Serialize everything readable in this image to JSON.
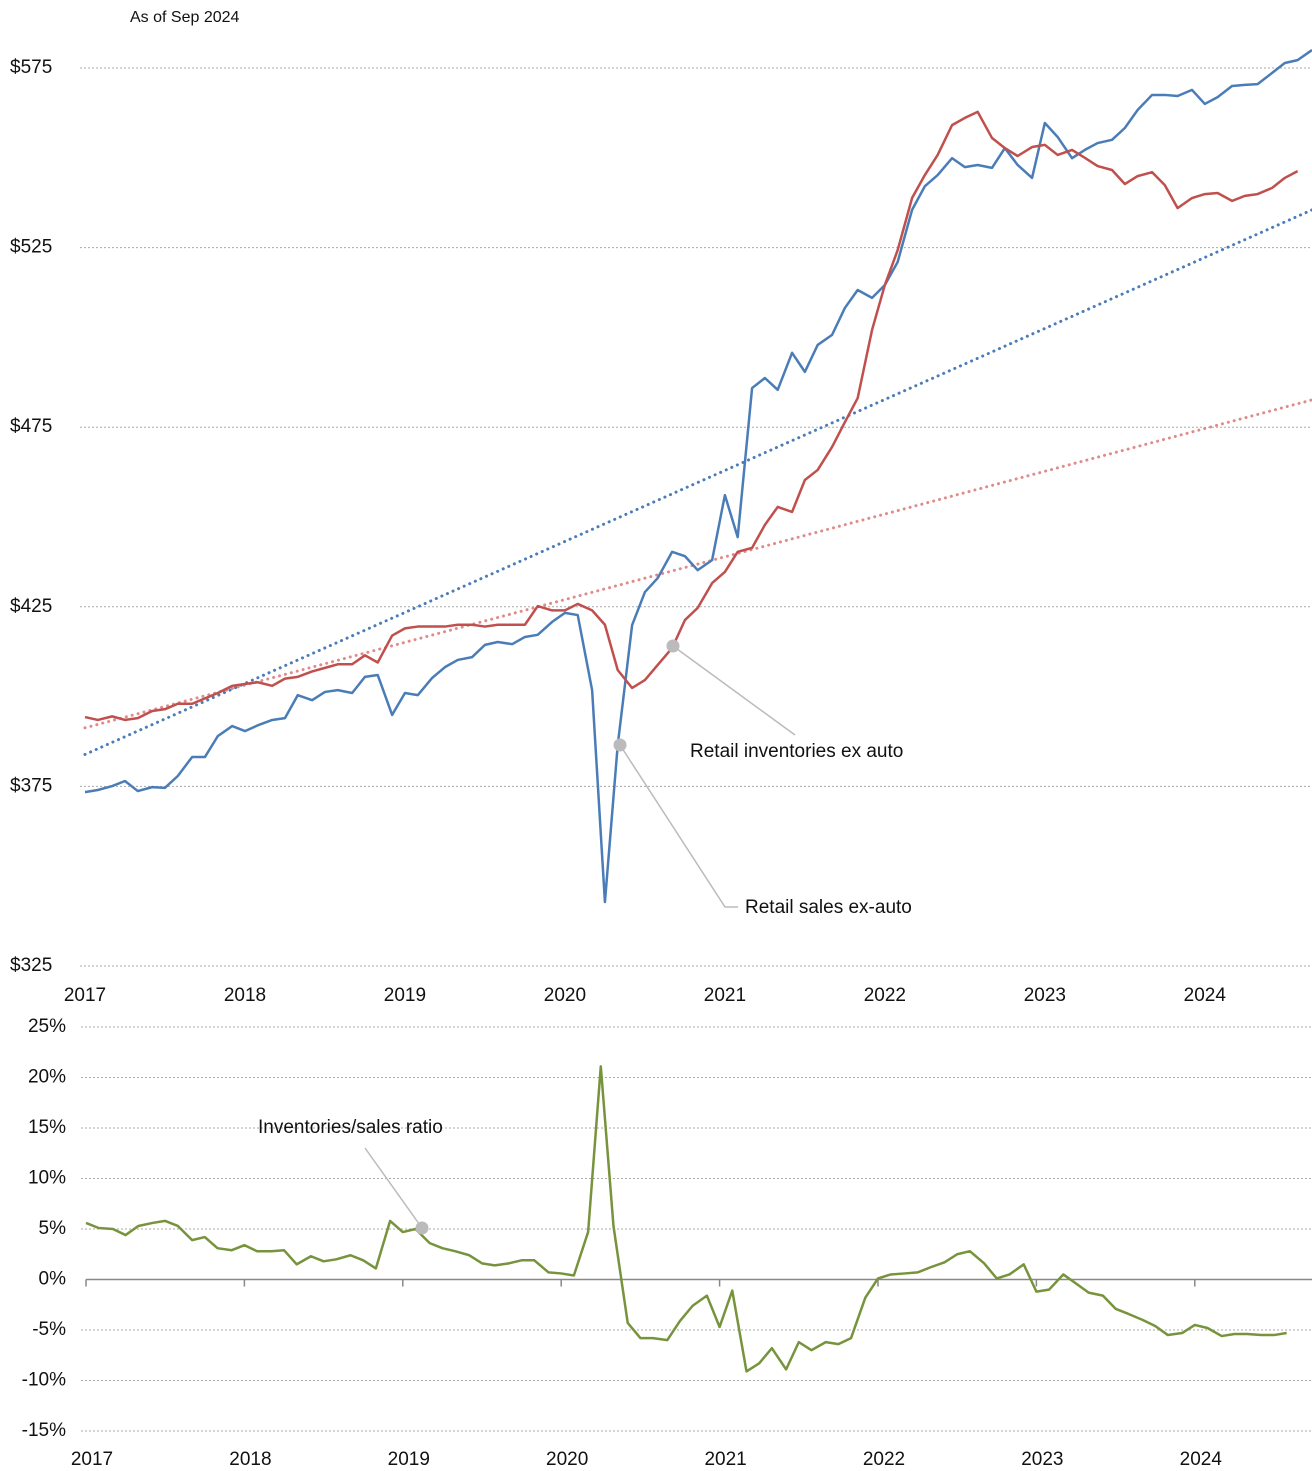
{
  "chart_data": [
    {
      "type": "line",
      "title": "As of Sep 2024",
      "x": [
        2017,
        2017.08,
        2017.17,
        2017.25,
        2017.33,
        2017.42,
        2017.5,
        2017.58,
        2017.67,
        2017.75,
        2017.83,
        2017.92,
        2018,
        2018.08,
        2018.17,
        2018.25,
        2018.33,
        2018.42,
        2018.5,
        2018.58,
        2018.67,
        2018.75,
        2018.83,
        2018.92,
        2019,
        2019.08,
        2019.17,
        2019.25,
        2019.33,
        2019.42,
        2019.5,
        2019.58,
        2019.67,
        2019.75,
        2019.83,
        2019.92,
        2020,
        2020.08,
        2020.17,
        2020.25,
        2020.33,
        2020.42,
        2020.5,
        2020.58,
        2020.67,
        2020.75,
        2020.83,
        2020.92,
        2021,
        2021.08,
        2021.17,
        2021.25,
        2021.33,
        2021.42,
        2021.5,
        2021.58,
        2021.67,
        2021.75,
        2021.83,
        2021.92,
        2022,
        2022.08,
        2022.17,
        2022.25,
        2022.33,
        2022.42,
        2022.5,
        2022.58,
        2022.67,
        2022.75,
        2022.83,
        2022.92,
        2023,
        2023.08,
        2023.17,
        2023.25,
        2023.33,
        2023.42,
        2023.5,
        2023.58,
        2023.67,
        2023.75,
        2023.83,
        2023.92,
        2024,
        2024.08,
        2024.17,
        2024.25,
        2024.33,
        2024.42,
        2024.5,
        2024.58,
        2024.67
      ],
      "series": [
        {
          "color": "#4a7db8",
          "values": [
            373.4,
            374,
            375.1,
            376.5,
            373.7,
            374.8,
            374.6,
            377.9,
            383.2,
            383.2,
            389,
            391.8,
            390.4,
            392,
            393.5,
            394,
            400.4,
            399,
            401.3,
            401.8,
            401,
            405.5,
            406,
            394.9,
            401,
            400.4,
            405.2,
            408.2,
            410.2,
            411,
            414.4,
            415.2,
            414.6,
            416.6,
            417.2,
            420.8,
            423.3,
            422.7,
            401.8,
            342.8,
            386.5,
            419.9,
            429.1,
            433,
            440.3,
            439.1,
            435.2,
            438,
            456.1,
            444.4,
            485.9,
            488.7,
            485.4,
            495.7,
            490.4,
            497.9,
            500.7,
            508.2,
            513.2,
            511,
            514.6,
            521,
            535.5,
            542.1,
            545.2,
            549.9,
            547.4,
            548,
            547.2,
            552.7,
            548,
            544.4,
            559.7,
            555.8,
            549.9,
            552.2,
            554.1,
            555,
            558.3,
            563.3,
            567.5,
            567.5,
            567.2,
            568.9,
            565,
            566.9,
            570,
            570.3,
            570.5,
            573.6,
            576.4,
            577.2,
            580
          ]
        },
        {
          "color": "#c0504d",
          "values": [
            394.3,
            393.5,
            394.5,
            393.5,
            394,
            396,
            396.5,
            398,
            398,
            399.5,
            401,
            403,
            403.5,
            404,
            403,
            405,
            405.5,
            407,
            408,
            409,
            409,
            411.5,
            409.5,
            417,
            419,
            419.5,
            419.5,
            419.5,
            420,
            420,
            419.5,
            420,
            420,
            420,
            425.2,
            424,
            424,
            425.8,
            424,
            420,
            407.4,
            402.4,
            404.6,
            408.8,
            413.5,
            421.3,
            424.7,
            431.6,
            434.7,
            440.3,
            441.4,
            447.8,
            452.8,
            451.4,
            460.3,
            463.1,
            469.5,
            476.4,
            483.1,
            502.1,
            514.6,
            524.3,
            538.8,
            545.2,
            550.8,
            559.1,
            561.1,
            562.8,
            555.5,
            552.7,
            550.5,
            553,
            553.6,
            550.8,
            552.2,
            550,
            547.7,
            546.6,
            542.7,
            544.9,
            546,
            542.4,
            536,
            538.8,
            539.9,
            540.2,
            538,
            539.4,
            539.9,
            541.6,
            544.4,
            546.3,
            null
          ]
        }
      ],
      "trendlines": [
        {
          "color": "#4a7db8",
          "x": [
            2017,
            2024.67
          ],
          "values": [
            383.9,
            535.5
          ]
        },
        {
          "color": "#e08a8a",
          "x": [
            2017,
            2024.67
          ],
          "values": [
            391.3,
            482.6
          ]
        }
      ],
      "annotations": [
        {
          "text": "Retail inventories ex auto",
          "color": "#c0504d"
        },
        {
          "text": "Retail sales ex-auto",
          "color": "#4a7db8"
        }
      ],
      "xlim": [
        2017,
        2024.67
      ],
      "xticks": [
        2017,
        2018,
        2019,
        2020,
        2021,
        2022,
        2023,
        2024
      ],
      "ylim": [
        325,
        575
      ],
      "yticks": [
        {
          "value": 325,
          "label": "$325"
        },
        {
          "value": 375,
          "label": "$375"
        },
        {
          "value": 425,
          "label": "$425"
        },
        {
          "value": 475,
          "label": "$475"
        },
        {
          "value": 525,
          "label": "$525"
        },
        {
          "value": 575,
          "label": "$575"
        }
      ],
      "grid": true,
      "zero_line": false
    },
    {
      "type": "line",
      "x": [
        2017,
        2017.08,
        2017.17,
        2017.25,
        2017.33,
        2017.42,
        2017.5,
        2017.58,
        2017.67,
        2017.75,
        2017.83,
        2017.92,
        2018,
        2018.08,
        2018.17,
        2018.25,
        2018.33,
        2018.42,
        2018.5,
        2018.58,
        2018.67,
        2018.75,
        2018.83,
        2018.92,
        2019,
        2019.08,
        2019.17,
        2019.25,
        2019.33,
        2019.42,
        2019.5,
        2019.58,
        2019.67,
        2019.75,
        2019.83,
        2019.92,
        2020,
        2020.08,
        2020.17,
        2020.25,
        2020.33,
        2020.42,
        2020.5,
        2020.58,
        2020.67,
        2020.75,
        2020.83,
        2020.92,
        2021,
        2021.08,
        2021.17,
        2021.25,
        2021.33,
        2021.42,
        2021.5,
        2021.58,
        2021.67,
        2021.75,
        2021.83,
        2021.92,
        2022,
        2022.08,
        2022.17,
        2022.25,
        2022.33,
        2022.42,
        2022.5,
        2022.58,
        2022.67,
        2022.75,
        2022.83,
        2022.92,
        2023,
        2023.08,
        2023.17,
        2023.25,
        2023.33,
        2023.42,
        2023.5,
        2023.58,
        2023.67,
        2023.75,
        2023.83,
        2023.92,
        2024,
        2024.08,
        2024.17,
        2024.25,
        2024.33,
        2024.42,
        2024.5,
        2024.58
      ],
      "series": [
        {
          "color": "#77933c",
          "values": [
            5.6,
            5.1,
            5,
            4.4,
            5.3,
            5.6,
            5.8,
            5.3,
            3.9,
            4.2,
            3.1,
            2.9,
            3.4,
            2.8,
            2.8,
            2.9,
            1.5,
            2.3,
            1.8,
            2,
            2.4,
            1.9,
            1.1,
            5.8,
            4.7,
            5,
            3.6,
            3.1,
            2.8,
            2.4,
            1.6,
            1.4,
            1.6,
            1.9,
            1.9,
            0.7,
            0.6,
            0.4,
            4.7,
            21.1,
            5.3,
            -4.3,
            -5.8,
            -5.8,
            -6,
            -4.1,
            -2.6,
            -1.6,
            -4.7,
            -1.1,
            -9.1,
            -8.3,
            -6.8,
            -8.9,
            -6.2,
            -7,
            -6.2,
            -6.4,
            -5.8,
            -1.8,
            0.1,
            0.5,
            0.6,
            0.7,
            1.2,
            1.7,
            2.5,
            2.8,
            1.6,
            0.1,
            0.5,
            1.5,
            -1.2,
            -1,
            0.5,
            -0.4,
            -1.3,
            -1.6,
            -2.9,
            -3.4,
            -4,
            -4.6,
            -5.5,
            -5.3,
            -4.5,
            -4.8,
            -5.6,
            -5.4,
            -5.4,
            -5.5,
            -5.5,
            -5.3
          ]
        }
      ],
      "annotations": [
        {
          "text": "Inventories/sales ratio",
          "color": "#8db04a"
        }
      ],
      "xlim": [
        2017,
        2024.74
      ],
      "xticks": [
        2017,
        2018,
        2019,
        2020,
        2021,
        2022,
        2023,
        2024
      ],
      "ylim": [
        -15,
        25
      ],
      "yticks": [
        {
          "value": -15,
          "label": "-15%"
        },
        {
          "value": -10,
          "label": "-10%"
        },
        {
          "value": -5,
          "label": "-5%"
        },
        {
          "value": 0,
          "label": "0%"
        },
        {
          "value": 5,
          "label": "5%"
        },
        {
          "value": 10,
          "label": "10%"
        },
        {
          "value": 15,
          "label": "15%"
        },
        {
          "value": 20,
          "label": "20%"
        },
        {
          "value": 25,
          "label": "25%"
        }
      ],
      "grid": true,
      "zero_line": true
    }
  ]
}
